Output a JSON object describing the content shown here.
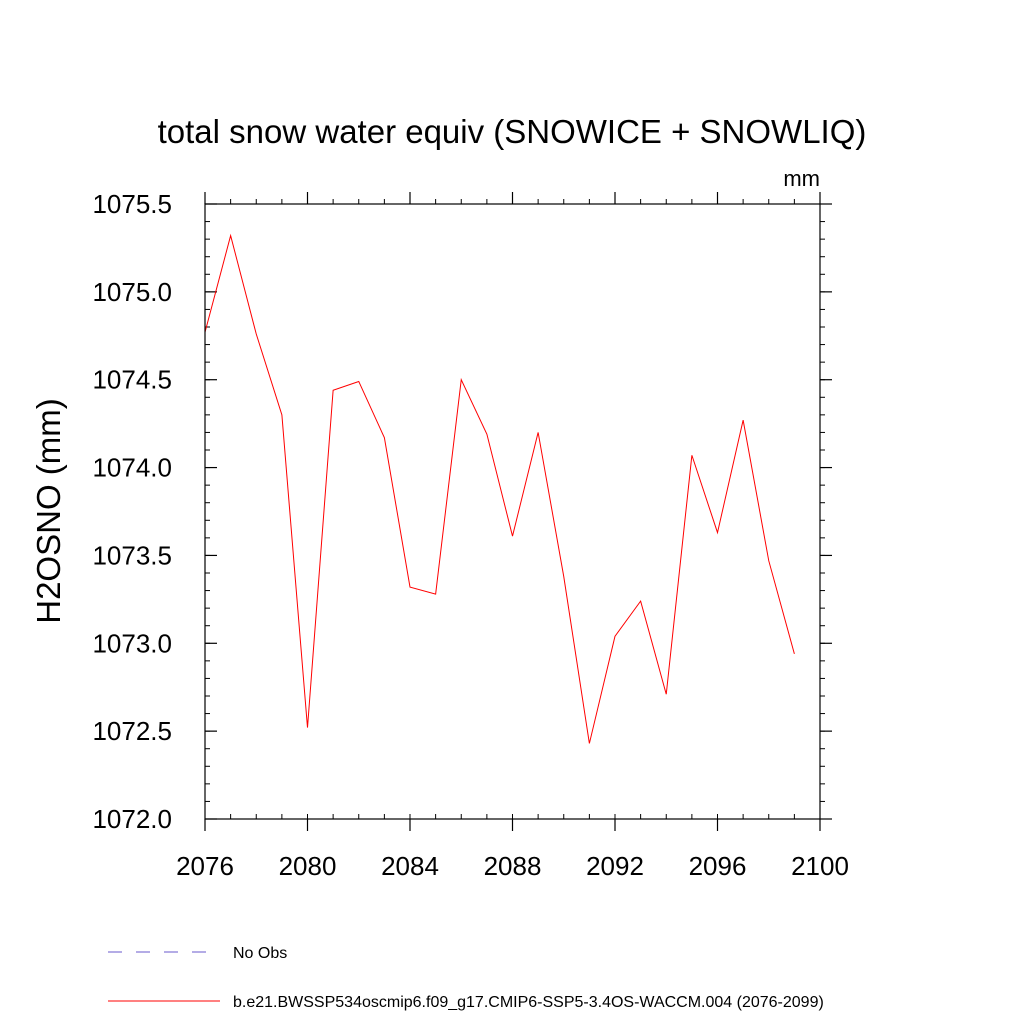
{
  "chart_data": {
    "type": "line",
    "title": "total snow water equiv (SNOWICE + SNOWLIQ)",
    "units_label": "mm",
    "xlabel": "",
    "ylabel": "H2OSNO  (mm)",
    "xlim": [
      2076,
      2100
    ],
    "ylim": [
      1072.0,
      1075.5
    ],
    "x_ticks": [
      "2076",
      "2080",
      "2084",
      "2088",
      "2092",
      "2096",
      "2100"
    ],
    "y_ticks": [
      "1072.0",
      "1072.5",
      "1073.0",
      "1073.5",
      "1074.0",
      "1074.5",
      "1075.0",
      "1075.5"
    ],
    "x": [
      2076,
      2077,
      2078,
      2079,
      2080,
      2081,
      2082,
      2083,
      2084,
      2085,
      2086,
      2087,
      2088,
      2089,
      2090,
      2091,
      2092,
      2093,
      2094,
      2095,
      2096,
      2097,
      2098,
      2099
    ],
    "series": [
      {
        "name": "b.e21.BWSSP534oscmip6.f09_g17.CMIP6-SSP5-3.4OS-WACCM.004 (2076-2099)",
        "color": "#ff0000",
        "style": "solid",
        "values": [
          1074.77,
          1075.32,
          1074.76,
          1074.3,
          1072.52,
          1074.44,
          1074.49,
          1074.17,
          1073.32,
          1073.28,
          1074.5,
          1074.19,
          1073.61,
          1074.2,
          1073.38,
          1072.43,
          1073.04,
          1073.24,
          1072.71,
          1074.07,
          1073.63,
          1074.27,
          1073.47,
          1072.94
        ]
      }
    ],
    "legend": [
      {
        "label": "No Obs",
        "color": "#6a5acd",
        "style": "dashed"
      },
      {
        "label": "b.e21.BWSSP534oscmip6.f09_g17.CMIP6-SSP5-3.4OS-WACCM.004 (2076-2099)",
        "color": "#ff0000",
        "style": "solid"
      }
    ],
    "legend_position": "bottom-left"
  }
}
